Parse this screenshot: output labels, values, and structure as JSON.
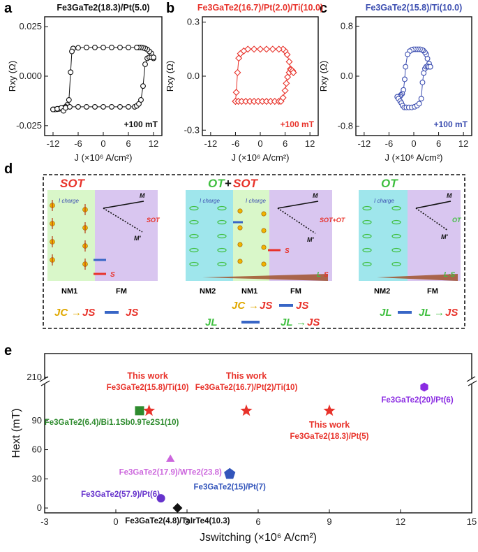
{
  "chart_data": [
    {
      "panel": "a",
      "type": "line",
      "title": "Fe3GaTe2(18.3)/Pt(5.0)",
      "xlabel": "J (×10⁶ A/cm²)",
      "ylabel": "Rxy (Ω)",
      "field_label": "+100 mT",
      "xlim": [
        -14,
        14
      ],
      "ylim": [
        -0.03,
        0.03
      ],
      "xticks": [
        -12,
        -6,
        0,
        6,
        12
      ],
      "yticks": [
        -0.025,
        0.0,
        0.025
      ],
      "ytick_labels": [
        "-0.025",
        "0.000",
        "0.025"
      ],
      "color": "#111111",
      "series": [
        {
          "x": [
            12,
            11.5,
            11,
            10.5,
            10,
            9.5,
            9,
            8.5,
            8,
            6,
            4,
            2,
            0,
            -2,
            -4,
            -6,
            -7.2,
            -7.5,
            -7.8,
            -8.2,
            -8.6,
            -9,
            -9.5,
            -10,
            -10.5,
            -11,
            -11.5,
            -12
          ],
          "values": [
            0.009,
            0.0115,
            0.0125,
            0.0135,
            0.014,
            0.0143,
            0.0145,
            0.0145,
            0.0145,
            0.0145,
            0.0145,
            0.0145,
            0.0145,
            0.0145,
            0.0145,
            0.0143,
            0.014,
            0.0125,
            0.002,
            -0.012,
            -0.0145,
            -0.0155,
            -0.016,
            -0.0162,
            -0.0165,
            -0.0167,
            -0.0168,
            -0.0168
          ]
        },
        {
          "x": [
            -12,
            -11,
            -10,
            -9.5,
            -9,
            -8,
            -6,
            -4,
            -2,
            0,
            2,
            4,
            6,
            7.5,
            8,
            8.5,
            9,
            9.5,
            10,
            10.5,
            11,
            11.5,
            12
          ],
          "values": [
            -0.0168,
            -0.0165,
            -0.016,
            -0.0175,
            -0.016,
            -0.0155,
            -0.0155,
            -0.0155,
            -0.0155,
            -0.0155,
            -0.0155,
            -0.0155,
            -0.0155,
            -0.0155,
            -0.015,
            -0.014,
            -0.012,
            -0.005,
            0.006,
            0.009,
            0.0095,
            0.0095,
            0.0095
          ]
        }
      ]
    },
    {
      "panel": "b",
      "type": "line",
      "title": "Fe3GaTe2(16.7)/Pt(2.0)/Ti(10.0)",
      "xlabel": "J (×10⁶ A/cm²)",
      "ylabel": "Rxy (Ω)",
      "field_label": "+100 mT",
      "xlim": [
        -14,
        14
      ],
      "ylim": [
        -0.33,
        0.33
      ],
      "xticks": [
        -12,
        -6,
        0,
        6,
        12
      ],
      "yticks": [
        -0.3,
        0.0,
        0.3
      ],
      "ytick_labels": [
        "-0.3",
        "0.0",
        "0.3"
      ],
      "color": "#e8322a",
      "series": [
        {
          "x": [
            8,
            7.6,
            7.3,
            7,
            6.5,
            6,
            5.5,
            4.5,
            3,
            1.5,
            0,
            -1.5,
            -3,
            -4,
            -4.8,
            -5.2,
            -5.5,
            -5.8,
            -6
          ],
          "values": [
            0.02,
            0.03,
            0.04,
            0.08,
            0.12,
            0.14,
            0.15,
            0.15,
            0.15,
            0.15,
            0.15,
            0.15,
            0.15,
            0.14,
            0.125,
            0.1,
            0.02,
            -0.09,
            -0.14
          ]
        },
        {
          "x": [
            -6,
            -5.3,
            -4.5,
            -3.5,
            -2.5,
            -1.5,
            -0.5,
            0.5,
            1.5,
            2.5,
            3.5,
            4.5,
            5,
            5.5,
            6,
            6.3,
            6.6,
            7,
            7.4,
            7.8,
            8
          ],
          "values": [
            -0.14,
            -0.14,
            -0.14,
            -0.14,
            -0.14,
            -0.14,
            -0.14,
            -0.14,
            -0.14,
            -0.14,
            -0.14,
            -0.14,
            -0.14,
            -0.12,
            -0.08,
            -0.04,
            -0.005,
            0.02,
            0.035,
            0.03,
            0.02
          ]
        }
      ]
    },
    {
      "panel": "c",
      "type": "line",
      "title": "Fe3GaTe2(15.8)/Ti(10.0)",
      "xlabel": "J (×10⁶ A/cm²)",
      "ylabel": "Rxy (Ω)",
      "field_label": "+100 mT",
      "xlim": [
        -14,
        14
      ],
      "ylim": [
        -0.95,
        0.95
      ],
      "xticks": [
        -12,
        -6,
        0,
        6,
        12
      ],
      "yticks": [
        -0.8,
        0.0,
        0.8
      ],
      "ytick_labels": [
        "-0.8",
        "0.0",
        "0.8"
      ],
      "color": "#3b4db0",
      "series": [
        {
          "x": [
            4,
            3.7,
            3.3,
            3,
            2.7,
            2.3,
            2,
            1.5,
            1,
            0.5,
            0,
            -0.5,
            -1,
            -1.5,
            -2,
            -2.2,
            -2.5,
            -2.8,
            -3.1,
            -3.3,
            -3.6,
            -4
          ],
          "values": [
            0.15,
            0.2,
            0.28,
            0.35,
            0.38,
            0.41,
            0.42,
            0.43,
            0.43,
            0.43,
            0.43,
            0.42,
            0.4,
            0.35,
            0.15,
            -0.05,
            -0.22,
            -0.28,
            -0.3,
            -0.32,
            -0.33,
            -0.33
          ]
        },
        {
          "x": [
            -4,
            -3.7,
            -3.3,
            -3,
            -2.7,
            -2.3,
            -1.8,
            -1.2,
            -0.5,
            0.2,
            0.8,
            1.3,
            1.8,
            2.1,
            2.4,
            2.7,
            3,
            3.3,
            3.6,
            4
          ],
          "values": [
            -0.33,
            -0.36,
            -0.4,
            -0.43,
            -0.47,
            -0.5,
            -0.5,
            -0.5,
            -0.5,
            -0.49,
            -0.47,
            -0.44,
            -0.36,
            -0.1,
            0.05,
            0.12,
            0.15,
            0.16,
            0.15,
            0.15
          ]
        }
      ]
    },
    {
      "panel": "e",
      "type": "scatter",
      "xlabel": "Jswitching (×10⁶ A/cm²)",
      "ylabel": "Hext (mT)",
      "xlim": [
        -3,
        15
      ],
      "xticks": [
        -3,
        0,
        3,
        6,
        9,
        12,
        15
      ],
      "yticks": [
        0,
        30,
        60,
        90,
        210
      ],
      "ylim_lower": [
        -5,
        120
      ],
      "ylim_upper": [
        190,
        220
      ],
      "points": [
        {
          "label": "Fe3GaTe2(15.8)/Ti(10)",
          "note": "This work",
          "x": 1.4,
          "y": 100,
          "marker": "star",
          "color": "#e8322a"
        },
        {
          "label": "Fe3GaTe2(16.7)/Pt(2)/Ti(10)",
          "note": "This work",
          "x": 5.5,
          "y": 100,
          "marker": "star",
          "color": "#e8322a"
        },
        {
          "label": "Fe3GaTe2(18.3)/Pt(5)",
          "note": "This work",
          "x": 9.0,
          "y": 100,
          "marker": "star",
          "color": "#e8322a"
        },
        {
          "label": "Fe3GaTe2(6.4)/Bi1.1Sb0.9Te2S1(10)",
          "x": 1.0,
          "y": 100,
          "marker": "square",
          "color": "#2e8b2e"
        },
        {
          "label": "Fe3GaTe2(20)/Pt(6)",
          "x": 13.0,
          "y": 200,
          "marker": "hexagon",
          "color": "#8a2be2"
        },
        {
          "label": "Fe3GaTe2(17.9)/WTe2(23.8)",
          "x": 2.3,
          "y": 50,
          "marker": "triangle",
          "color": "#cc66dd"
        },
        {
          "label": "Fe3GaTe2(15)/Pt(7)",
          "x": 4.8,
          "y": 35,
          "marker": "pentagon",
          "color": "#3355bb"
        },
        {
          "label": "Fe3GaTe2(57.9)/Pt(6)",
          "x": 1.9,
          "y": 10,
          "marker": "circle",
          "color": "#6633cc"
        },
        {
          "label": "Fe3GaTe2(4.8)/TaIrTe4(10.3)",
          "x": 2.6,
          "y": 0,
          "marker": "diamond",
          "color": "#111111"
        }
      ]
    }
  ],
  "panel_labels": [
    "a",
    "b",
    "c",
    "d",
    "e"
  ],
  "schematic": {
    "sot_panel": {
      "title": "SOT",
      "charge_label": "I charge",
      "layers": [
        "NM1",
        "FM"
      ],
      "vector_labels": [
        "M",
        "M'",
        "SOT",
        "S"
      ],
      "formula": [
        "JC",
        "→",
        "JS",
        "JS"
      ]
    },
    "ot_sot_panel": {
      "title_a": "OT",
      "title_plus": "+",
      "title_b": "SOT",
      "charge_label": "I charge",
      "layers": [
        "NM2",
        "NM1",
        "FM"
      ],
      "vector_labels": [
        "M",
        "M'",
        "SOT+OT",
        "S",
        "L",
        "S"
      ],
      "formula_row1": [
        "JC",
        "→",
        "JS",
        "JS"
      ],
      "formula_row2": [
        "JL",
        "JL",
        "→",
        "JS"
      ]
    },
    "ot_panel": {
      "title": "OT",
      "charge_label": "I charge",
      "layers": [
        "NM2",
        "FM"
      ],
      "vector_labels": [
        "M",
        "M'",
        "OT",
        "L·S"
      ],
      "formula": [
        "JL",
        "JL",
        "→",
        "JS"
      ]
    }
  },
  "colors": {
    "red": "#e8322a",
    "blue": "#3b4db0",
    "green": "#3fbf3f",
    "orange": "#e0a800",
    "purple": "#8a2be2",
    "nm1_fill": "#d9f7c9",
    "nm2_fill": "#9fe6ec",
    "fm_fill": "#d9c6f0"
  }
}
